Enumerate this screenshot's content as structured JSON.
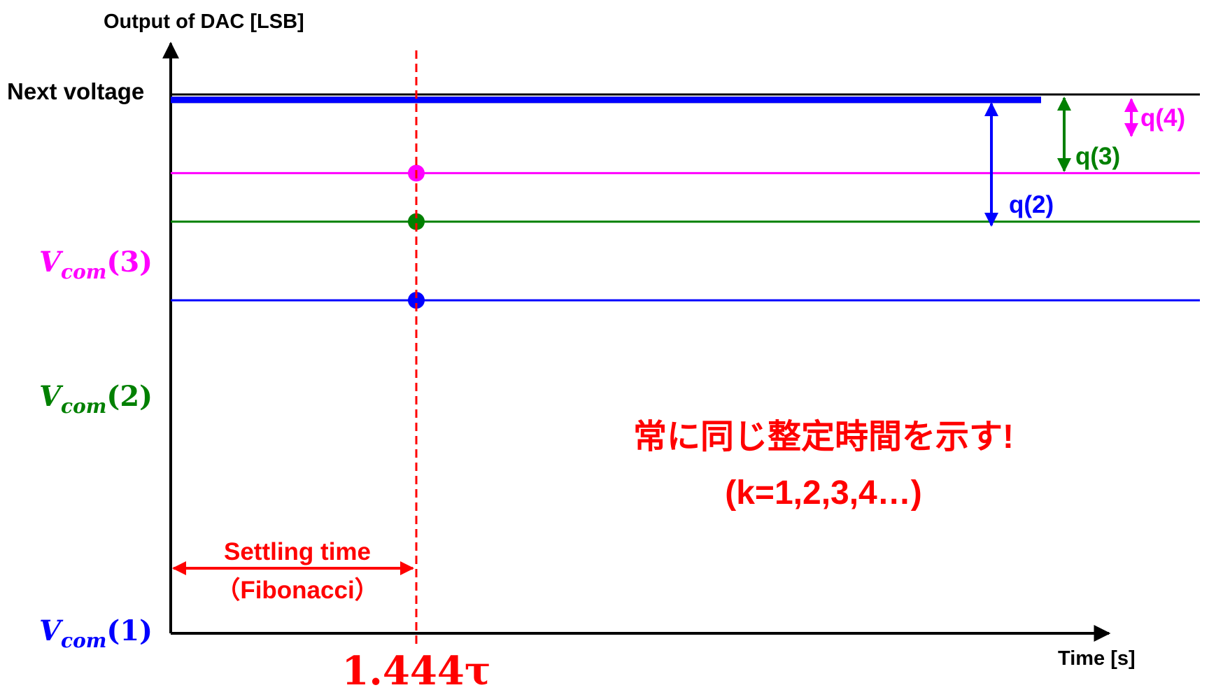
{
  "chart_data": {
    "type": "line",
    "title": "",
    "ylabel": "Output of DAC [LSB]",
    "xlabel": "Time [s]",
    "y_top_label": "Next voltage",
    "start_labels": [
      {
        "prefix": "V",
        "sub": "com",
        "arg": "(1)",
        "color": "#0000ff"
      },
      {
        "prefix": "V",
        "sub": "com",
        "arg": "(2)",
        "color": "#008000"
      },
      {
        "prefix": "V",
        "sub": "com",
        "arg": "(3)",
        "color": "#ff00ff"
      }
    ],
    "x_marker_label": "1.444τ",
    "marker_color": "#ff0000",
    "settling_label_line1": "Settling time",
    "settling_label_line2": "（Fibonacci）",
    "series": [
      {
        "key": "k1",
        "start": 0.0,
        "threshold": 0.618,
        "color": "#0000ff"
      },
      {
        "key": "k2",
        "start": 0.382,
        "threshold": 0.764,
        "color": "#008000"
      },
      {
        "key": "k3",
        "start": 0.618,
        "threshold": 0.854,
        "color": "#ff00ff"
      }
    ],
    "quantization": [
      {
        "label": "q(2)",
        "color": "#0000ff"
      },
      {
        "label": "q(3)",
        "color": "#008000"
      },
      {
        "label": "q(4)",
        "color": "#ff00ff"
      }
    ],
    "annotation_line1": "常に同じ整定時間を示す!",
    "annotation_line2": "(k=1,2,3,4…)",
    "annotation_color": "#ff0000"
  }
}
